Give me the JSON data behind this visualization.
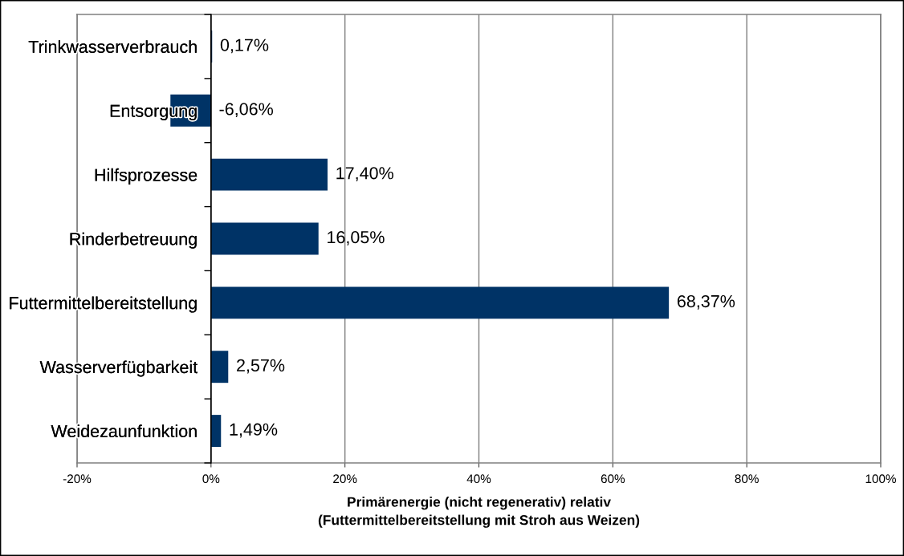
{
  "chart_data": {
    "type": "bar",
    "orientation": "horizontal",
    "categories": [
      "Trinkwasserverbrauch",
      "Entsorgung",
      "Hilfsprozesse",
      "Rinderbetreuung",
      "Futtermittelbereitstellung",
      "Wasserverfügbarkeit",
      "Weidezaunfunktion"
    ],
    "values": [
      0.17,
      -6.06,
      17.4,
      16.05,
      68.37,
      2.57,
      1.49
    ],
    "value_labels": [
      "0,17%",
      "-6,06%",
      "17,40%",
      "16,05%",
      "68,37%",
      "2,57%",
      "1,49%"
    ],
    "color": "#003366",
    "xlim": [
      -20,
      100
    ],
    "xticks": [
      {
        "value": -20,
        "label": "-20%"
      },
      {
        "value": 0,
        "label": "0%"
      },
      {
        "value": 20,
        "label": "20%"
      },
      {
        "value": 40,
        "label": "40%"
      },
      {
        "value": 60,
        "label": "60%"
      },
      {
        "value": 80,
        "label": "80%"
      },
      {
        "value": 100,
        "label": "100%"
      }
    ],
    "xlabel": "Primärenergie (nicht regenerativ) relativ\n(Futtermittelbereitstellung mit Stroh aus Weizen)",
    "grid": "x"
  }
}
